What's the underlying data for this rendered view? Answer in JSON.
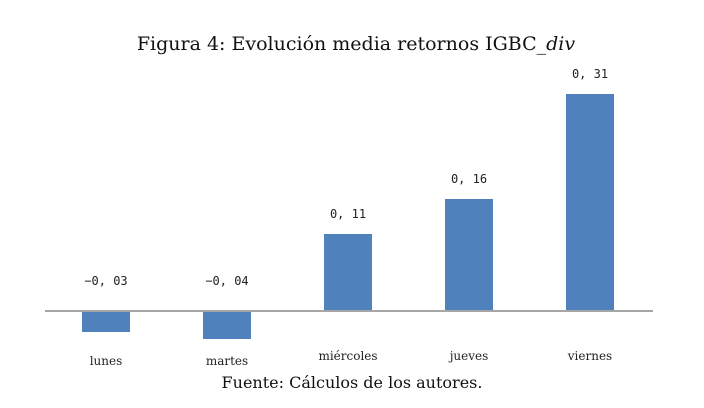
{
  "figure": {
    "title_main": "Figura 4: Evolución media retornos IGBC_",
    "title_italic": "div",
    "caption": "Fuente: Cálculos de los autores."
  },
  "colors": {
    "bar": "#4F81BD",
    "baseline": "#a6a6a6",
    "background": "#ffffff"
  },
  "chart_data": {
    "type": "bar",
    "categories": [
      "lunes",
      "martes",
      "miércoles",
      "jueves",
      "viernes"
    ],
    "values": [
      -0.03,
      -0.04,
      0.11,
      0.16,
      0.31
    ],
    "data_labels": [
      "−0, 03",
      "−0, 04",
      "0, 11",
      "0, 16",
      "0, 31"
    ],
    "title": "Figura 4: Evolución media retornos IGBC_div",
    "xlabel": "",
    "ylabel": "",
    "grid": false,
    "legend": "none"
  }
}
